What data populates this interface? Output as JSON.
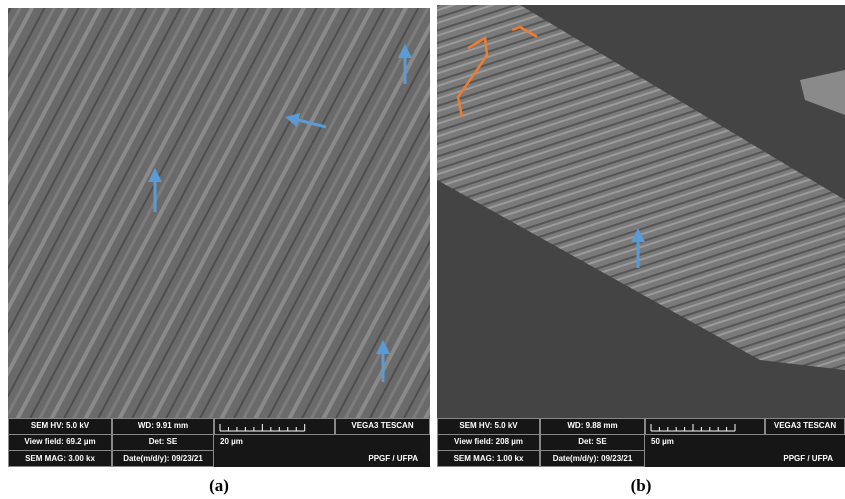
{
  "panels": [
    {
      "caption": "(a)",
      "info": {
        "hv": "SEM HV: 5.0 kV",
        "wd": "WD: 9.91 mm",
        "brand": "VEGA3 TESCAN",
        "view_field": "View field: 69.2 µm",
        "det": "Det: SE",
        "scale": "20 µm",
        "mag": "SEM MAG: 3.00 kx",
        "date": "Date(m/d/y): 09/23/21",
        "lab": "PPGF / UFPA"
      }
    },
    {
      "caption": "(b)",
      "info": {
        "hv": "SEM HV: 5.0 kV",
        "wd": "WD: 9.88 mm",
        "brand": "VEGA3 TESCAN",
        "view_field": "View field: 208 µm",
        "det": "Det: SE",
        "scale": "50 µm",
        "mag": "SEM MAG: 1.00 kx",
        "date": "Date(m/d/y): 09/23/21",
        "lab": "PPGF / UFPA"
      }
    }
  ]
}
